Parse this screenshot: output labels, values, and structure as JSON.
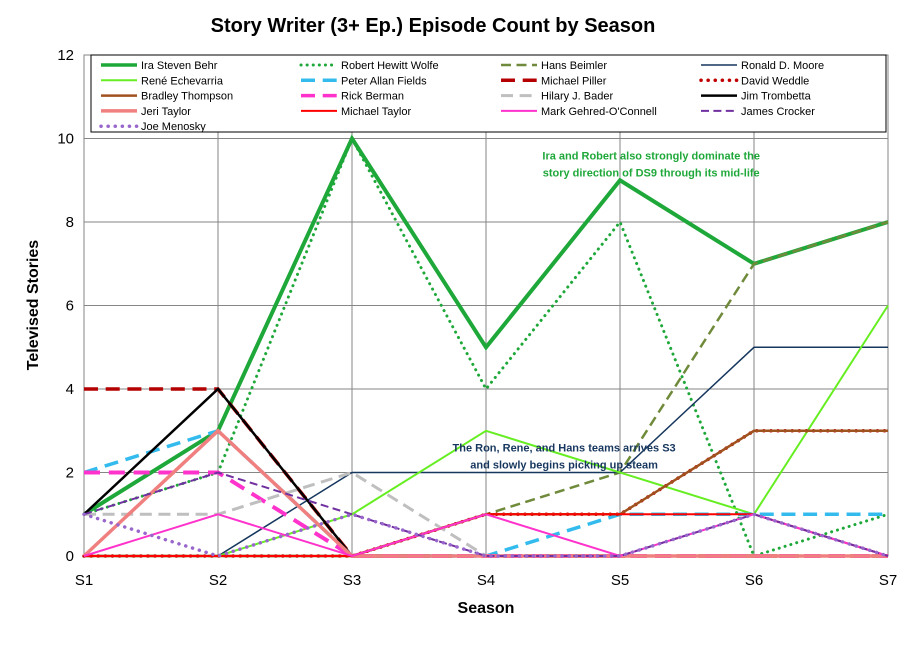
{
  "chart_data": {
    "type": "line",
    "title": "Story Writer (3+ Ep.) Episode Count by Season",
    "xlabel": "Season",
    "ylabel": "Televised Stories",
    "ylim": [
      0,
      12
    ],
    "y_ticks": [
      0,
      2,
      4,
      6,
      8,
      10,
      12
    ],
    "grid": true,
    "legend_position": "top",
    "categories": [
      "S1",
      "S2",
      "S3",
      "S4",
      "S5",
      "S6",
      "S7"
    ],
    "series": [
      {
        "name": "Ira Steven Behr",
        "color": "#1fa83a",
        "dash": "solid",
        "width": 4,
        "values": [
          1,
          3,
          10,
          5,
          9,
          7,
          8
        ]
      },
      {
        "name": "Robert Hewitt Wolfe",
        "color": "#1fa83a",
        "dash": "dot",
        "width": 3,
        "values": [
          1,
          2,
          10,
          4,
          8,
          0,
          1
        ]
      },
      {
        "name": "Hans Beimler",
        "color": "#6f8a3a",
        "dash": "dash",
        "width": 2.5,
        "values": [
          0,
          0,
          0,
          1,
          2,
          7,
          8
        ]
      },
      {
        "name": "Ronald D. Moore",
        "color": "#17375e",
        "dash": "solid",
        "width": 1.5,
        "values": [
          0,
          0,
          2,
          2,
          2,
          5,
          5
        ]
      },
      {
        "name": "René Echevarria",
        "color": "#66ee22",
        "dash": "solid",
        "width": 2,
        "values": [
          0,
          0,
          1,
          3,
          2,
          1,
          6
        ]
      },
      {
        "name": "Peter Allan Fields",
        "color": "#33bbee",
        "dash": "dash",
        "width": 3.5,
        "values": [
          2,
          3,
          0,
          0,
          1,
          1,
          1
        ]
      },
      {
        "name": "Michael Piller",
        "color": "#b40000",
        "dash": "dash",
        "width": 3.5,
        "values": [
          4,
          4,
          0,
          0,
          0,
          0,
          0
        ]
      },
      {
        "name": "David Weddle",
        "color": "#c00000",
        "dash": "dot",
        "width": 3.5,
        "values": [
          0,
          0,
          0,
          1,
          1,
          3,
          3
        ]
      },
      {
        "name": "Bradley Thompson",
        "color": "#a0521e",
        "dash": "solid",
        "width": 2.5,
        "values": [
          0,
          0,
          0,
          1,
          1,
          3,
          3
        ]
      },
      {
        "name": "Rick Berman",
        "color": "#ff33cc",
        "dash": "dash",
        "width": 4,
        "values": [
          2,
          2,
          0,
          0,
          0,
          0,
          0
        ]
      },
      {
        "name": "Hilary J. Bader",
        "color": "#bfbfbf",
        "dash": "dash",
        "width": 3,
        "values": [
          1,
          1,
          2,
          0,
          0,
          0,
          0
        ]
      },
      {
        "name": "Jim Trombetta",
        "color": "#000000",
        "dash": "solid",
        "width": 2.5,
        "values": [
          1,
          4,
          0,
          0,
          0,
          0,
          0
        ]
      },
      {
        "name": "Jeri Taylor",
        "color": "#f08080",
        "dash": "solid",
        "width": 3.5,
        "values": [
          0,
          3,
          0,
          0,
          0,
          0,
          0
        ]
      },
      {
        "name": "Michael Taylor",
        "color": "#ff0000",
        "dash": "solid",
        "width": 2,
        "values": [
          0,
          0,
          0,
          1,
          1,
          1,
          0
        ]
      },
      {
        "name": "Mark Gehred-O'Connell",
        "color": "#ff33cc",
        "dash": "solid",
        "width": 2,
        "values": [
          0,
          1,
          0,
          1,
          0,
          1,
          0
        ]
      },
      {
        "name": "James Crocker",
        "color": "#7030a0",
        "dash": "dash",
        "width": 2,
        "values": [
          1,
          2,
          1,
          0,
          0,
          1,
          0
        ]
      },
      {
        "name": "Joe Menosky",
        "color": "#9966cc",
        "dash": "dot",
        "width": 3.5,
        "values": [
          1,
          0,
          1,
          0,
          0,
          1,
          0
        ]
      }
    ],
    "annotations": [
      {
        "lines": [
          "Ira and Robert also strongly dominate the",
          "story direction of DS9 through its mid-life"
        ],
        "color": "#1fa83a",
        "anchor_x": 3.3,
        "anchor_y": 9.5
      },
      {
        "lines": [
          "The Ron, Rene, and Hans teams arrives S3",
          "and slowly begins picking up steam"
        ],
        "color": "#17375e",
        "anchor_x": 2.65,
        "anchor_y": 2.5
      }
    ]
  }
}
